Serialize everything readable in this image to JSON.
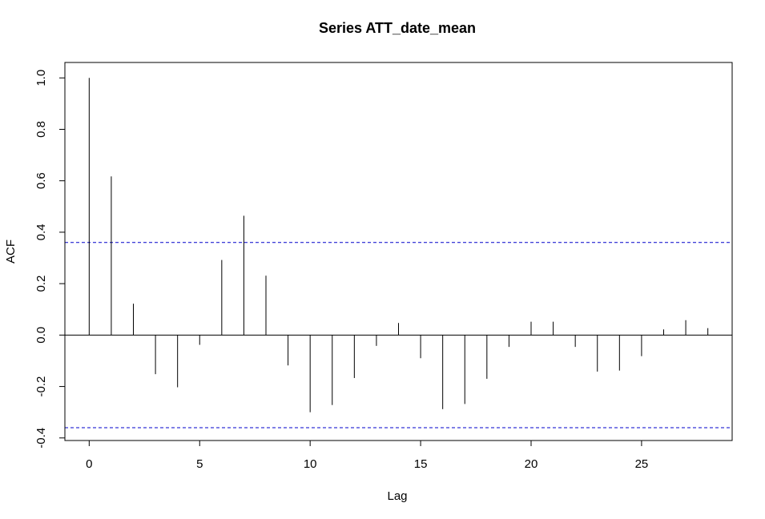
{
  "chart_data": {
    "type": "bar",
    "title": "Series  ATT_date_mean",
    "xlabel": "Lag",
    "ylabel": "ACF",
    "xlim": [
      -1.1,
      29.1
    ],
    "ylim": [
      -0.41,
      1.06
    ],
    "x_ticks": [
      0,
      5,
      10,
      15,
      20,
      25
    ],
    "x_tick_labels": [
      "0",
      "5",
      "10",
      "15",
      "20",
      "25"
    ],
    "y_ticks": [
      -0.4,
      -0.2,
      0.0,
      0.2,
      0.4,
      0.6,
      0.8,
      1.0
    ],
    "y_tick_labels": [
      "-0.4",
      "-0.2",
      "0.0",
      "0.2",
      "0.4",
      "0.6",
      "0.8",
      "1.0"
    ],
    "lags": [
      0,
      1,
      2,
      3,
      4,
      5,
      6,
      7,
      8,
      9,
      10,
      11,
      12,
      13,
      14,
      15,
      16,
      17,
      18,
      19,
      20,
      21,
      22,
      23,
      24,
      25,
      26,
      27,
      28
    ],
    "acf": [
      1.0,
      0.617,
      0.122,
      -0.152,
      -0.203,
      -0.038,
      0.292,
      0.464,
      0.231,
      -0.118,
      -0.3,
      -0.272,
      -0.167,
      -0.042,
      0.047,
      -0.09,
      -0.288,
      -0.268,
      -0.17,
      -0.046,
      0.052,
      0.052,
      -0.046,
      -0.142,
      -0.138,
      -0.082,
      0.022,
      0.058,
      0.027
    ],
    "confidence_bound": 0.36,
    "colors": {
      "bars": "#000000",
      "confidence": "#0000cc",
      "zero_line": "#000000",
      "frame": "#000000"
    },
    "grid": false
  }
}
